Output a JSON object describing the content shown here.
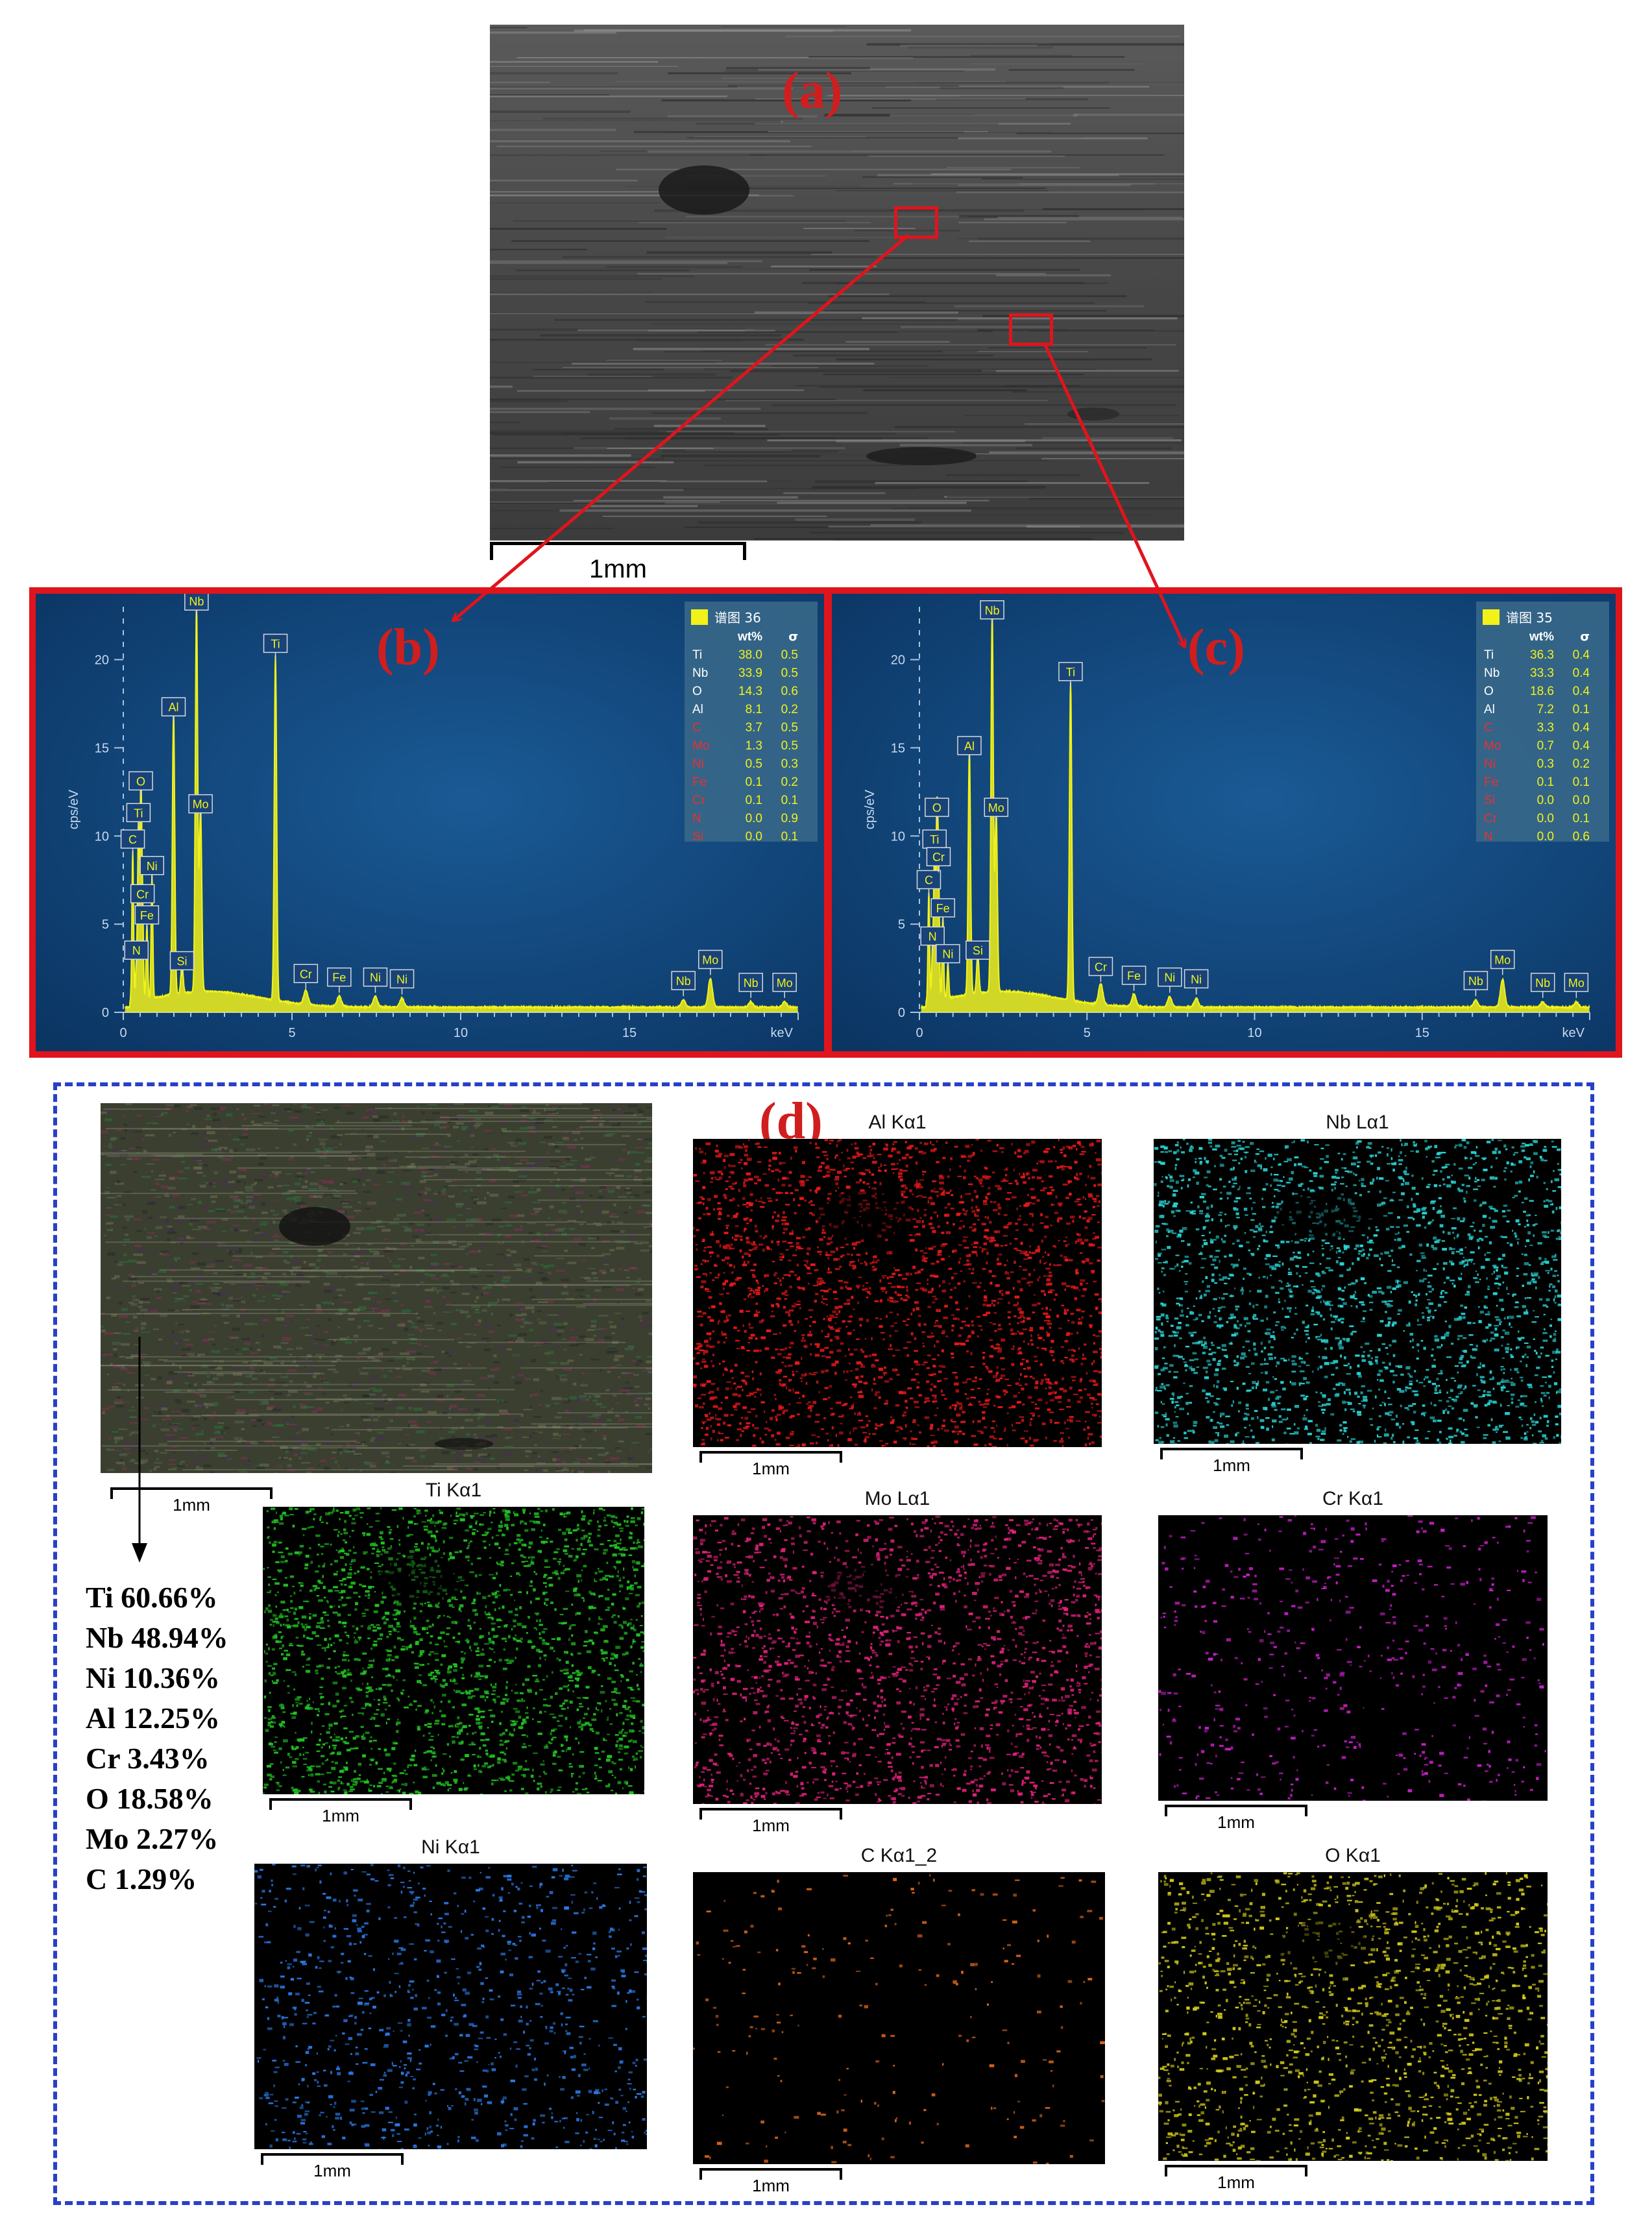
{
  "panels": {
    "a": "(a)",
    "b": "(b)",
    "c": "(c)",
    "d": "(d)"
  },
  "sem_scale": "1mm",
  "spectra": [
    {
      "id": "b",
      "legend_title": "谱图 36",
      "header_wt": "wt%",
      "header_sigma": "σ",
      "rows": [
        {
          "el": "Ti",
          "wt": "38.0",
          "s": "0.5",
          "hl": false
        },
        {
          "el": "Nb",
          "wt": "33.9",
          "s": "0.5",
          "hl": false
        },
        {
          "el": "O",
          "wt": "14.3",
          "s": "0.6",
          "hl": false
        },
        {
          "el": "Al",
          "wt": "8.1",
          "s": "0.2",
          "hl": false
        },
        {
          "el": "C",
          "wt": "3.7",
          "s": "0.5",
          "hl": true
        },
        {
          "el": "Mo",
          "wt": "1.3",
          "s": "0.5",
          "hl": true
        },
        {
          "el": "Ni",
          "wt": "0.5",
          "s": "0.3",
          "hl": true
        },
        {
          "el": "Fe",
          "wt": "0.1",
          "s": "0.2",
          "hl": true
        },
        {
          "el": "Cr",
          "wt": "0.1",
          "s": "0.1",
          "hl": true
        },
        {
          "el": "N",
          "wt": "0.0",
          "s": "0.9",
          "hl": true
        },
        {
          "el": "Si",
          "wt": "0.0",
          "s": "0.1",
          "hl": true
        }
      ]
    },
    {
      "id": "c",
      "legend_title": "谱图 35",
      "header_wt": "wt%",
      "header_sigma": "σ",
      "rows": [
        {
          "el": "Ti",
          "wt": "36.3",
          "s": "0.4",
          "hl": false
        },
        {
          "el": "Nb",
          "wt": "33.3",
          "s": "0.4",
          "hl": false
        },
        {
          "el": "O",
          "wt": "18.6",
          "s": "0.4",
          "hl": false
        },
        {
          "el": "Al",
          "wt": "7.2",
          "s": "0.1",
          "hl": false
        },
        {
          "el": "C",
          "wt": "3.3",
          "s": "0.4",
          "hl": true
        },
        {
          "el": "Mo",
          "wt": "0.7",
          "s": "0.4",
          "hl": true
        },
        {
          "el": "Ni",
          "wt": "0.3",
          "s": "0.2",
          "hl": true
        },
        {
          "el": "Fe",
          "wt": "0.1",
          "s": "0.1",
          "hl": true
        },
        {
          "el": "Si",
          "wt": "0.0",
          "s": "0.0",
          "hl": true
        },
        {
          "el": "Cr",
          "wt": "0.0",
          "s": "0.1",
          "hl": true
        },
        {
          "el": "N",
          "wt": "0.0",
          "s": "0.6",
          "hl": true
        }
      ]
    }
  ],
  "chart_data": [
    {
      "type": "line",
      "ylabel": "cps/eV",
      "xlabel": "keV",
      "x_ticks": [
        "0",
        "5",
        "10",
        "15"
      ],
      "y_ticks": [
        "0",
        "5",
        "10",
        "15",
        "20"
      ],
      "xlim": [
        0,
        20
      ],
      "ylim": [
        0,
        23
      ],
      "peaks": [
        {
          "label": "N",
          "x": 0.39,
          "y": 2.2
        },
        {
          "label": "C",
          "x": 0.28,
          "y": 8.5
        },
        {
          "label": "Ti",
          "x": 0.45,
          "y": 10.0
        },
        {
          "label": "O",
          "x": 0.52,
          "y": 11.8
        },
        {
          "label": "Cr",
          "x": 0.57,
          "y": 5.4
        },
        {
          "label": "Fe",
          "x": 0.7,
          "y": 4.2
        },
        {
          "label": "Ni",
          "x": 0.85,
          "y": 7.0
        },
        {
          "label": "Al",
          "x": 1.49,
          "y": 16.0
        },
        {
          "label": "Si",
          "x": 1.74,
          "y": 1.6
        },
        {
          "label": "Nb",
          "x": 2.17,
          "y": 22.0
        },
        {
          "label": "Mo",
          "x": 2.29,
          "y": 10.5
        },
        {
          "label": "Ti",
          "x": 4.51,
          "y": 19.6
        },
        {
          "label": "Cr",
          "x": 5.41,
          "y": 0.8
        },
        {
          "label": "Fe",
          "x": 6.4,
          "y": 0.6
        },
        {
          "label": "Ni",
          "x": 7.47,
          "y": 0.6
        },
        {
          "label": "Ni",
          "x": 8.26,
          "y": 0.5
        },
        {
          "label": "Nb",
          "x": 16.6,
          "y": 0.4
        },
        {
          "label": "Mo",
          "x": 17.4,
          "y": 1.6
        },
        {
          "label": "Nb",
          "x": 18.6,
          "y": 0.3
        },
        {
          "label": "Mo",
          "x": 19.6,
          "y": 0.3
        }
      ]
    },
    {
      "type": "line",
      "ylabel": "cps/eV",
      "xlabel": "keV",
      "x_ticks": [
        "0",
        "5",
        "10",
        "15"
      ],
      "y_ticks": [
        "0",
        "5",
        "10",
        "15",
        "20"
      ],
      "xlim": [
        0,
        20
      ],
      "ylim": [
        0,
        23
      ],
      "peaks": [
        {
          "label": "N",
          "x": 0.39,
          "y": 3.0
        },
        {
          "label": "C",
          "x": 0.28,
          "y": 6.2
        },
        {
          "label": "Ti",
          "x": 0.45,
          "y": 8.5
        },
        {
          "label": "O",
          "x": 0.52,
          "y": 10.3
        },
        {
          "label": "Cr",
          "x": 0.57,
          "y": 7.5
        },
        {
          "label": "Fe",
          "x": 0.7,
          "y": 4.6
        },
        {
          "label": "Ni",
          "x": 0.85,
          "y": 2.0
        },
        {
          "label": "Al",
          "x": 1.49,
          "y": 13.8
        },
        {
          "label": "Si",
          "x": 1.74,
          "y": 2.2
        },
        {
          "label": "Nb",
          "x": 2.17,
          "y": 21.5
        },
        {
          "label": "Mo",
          "x": 2.29,
          "y": 10.3
        },
        {
          "label": "Ti",
          "x": 4.51,
          "y": 18.0
        },
        {
          "label": "Cr",
          "x": 5.41,
          "y": 1.2
        },
        {
          "label": "Fe",
          "x": 6.4,
          "y": 0.7
        },
        {
          "label": "Ni",
          "x": 7.47,
          "y": 0.6
        },
        {
          "label": "Ni",
          "x": 8.26,
          "y": 0.5
        },
        {
          "label": "Nb",
          "x": 16.6,
          "y": 0.4
        },
        {
          "label": "Mo",
          "x": 17.4,
          "y": 1.6
        },
        {
          "label": "Nb",
          "x": 18.6,
          "y": 0.3
        },
        {
          "label": "Mo",
          "x": 19.6,
          "y": 0.3
        }
      ]
    }
  ],
  "maps": [
    {
      "title": "Al Kα1",
      "color": "#e81818",
      "scale": "1mm"
    },
    {
      "title": "Nb Lα1",
      "color": "#2ad4d4",
      "scale": "1mm"
    },
    {
      "title": "Ti Kα1",
      "color": "#22c322",
      "scale": "1mm"
    },
    {
      "title": "Mo Lα1",
      "color": "#e0207a",
      "scale": "1mm"
    },
    {
      "title": "Cr Kα1",
      "color": "#c81ec8",
      "scale": "1mm"
    },
    {
      "title": "Ni Kα1",
      "color": "#2a7ae8",
      "scale": "1mm"
    },
    {
      "title": "C Kα1_2",
      "color": "#e0681c",
      "scale": "1mm"
    },
    {
      "title": "O Kα1",
      "color": "#d2cc1a",
      "scale": "1mm"
    }
  ],
  "composite_scale": "1mm",
  "composition": [
    "Ti 60.66%",
    "Nb 48.94%",
    "Ni 10.36%",
    "Al 12.25%",
    "Cr  3.43%",
    "O  18.58%",
    "Mo  2.27%",
    "C  1.29%"
  ],
  "colors": {
    "frame_red": "#e0141c",
    "dash_blue": "#2840c8",
    "spectrum_bg": "#0c3a6b",
    "peak_yellow": "#f2f21a",
    "highlight_red": "#e83030"
  }
}
